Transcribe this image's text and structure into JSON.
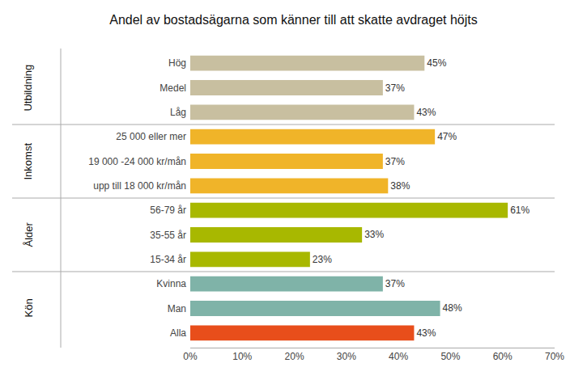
{
  "chart_data": {
    "type": "bar",
    "orientation": "horizontal",
    "title": "Andel av bostadsägarna som känner till att skatte avdraget höjts",
    "categories": [
      "Alla",
      "Man",
      "Kvinna",
      "15-34 år",
      "35-55 år",
      "56-79 år",
      "upp till 18 000 kr/mån",
      "19 000 -24 000 kr/mån",
      "25 000 eller mer",
      "Låg",
      "Medel",
      "Hög"
    ],
    "values": [
      43,
      48,
      37,
      23,
      33,
      61,
      38,
      37,
      47,
      43,
      37,
      45
    ],
    "value_labels": [
      "43%",
      "48%",
      "37%",
      "23%",
      "33%",
      "61%",
      "38%",
      "37%",
      "47%",
      "43%",
      "37%",
      "45%"
    ],
    "data_labels": true,
    "colors": [
      "#e84e1b",
      "#7fb3a8",
      "#7fb3a8",
      "#a8b800",
      "#a8b800",
      "#a8b800",
      "#f0b429",
      "#f0b429",
      "#f0b429",
      "#c8bfa0",
      "#c8bfa0",
      "#c8bfa0"
    ],
    "xlim": [
      0,
      70
    ],
    "xticks": [
      {
        "value": 0,
        "label": "0%"
      },
      {
        "value": 10,
        "label": "10%"
      },
      {
        "value": 20,
        "label": "20%"
      },
      {
        "value": 30,
        "label": "30%"
      },
      {
        "value": 40,
        "label": "40%"
      },
      {
        "value": 50,
        "label": "50%"
      },
      {
        "value": 60,
        "label": "60%"
      },
      {
        "value": 70,
        "label": "70%"
      }
    ],
    "grid": false,
    "annotations": [
      {
        "text": "Kön",
        "y": "Man"
      },
      {
        "text": "Ålder",
        "y": "35-55 år"
      },
      {
        "text": "Inkomst",
        "y": "19 000 -24 000 kr/mån"
      },
      {
        "text": "Utbildning",
        "y": "Medel"
      }
    ]
  }
}
